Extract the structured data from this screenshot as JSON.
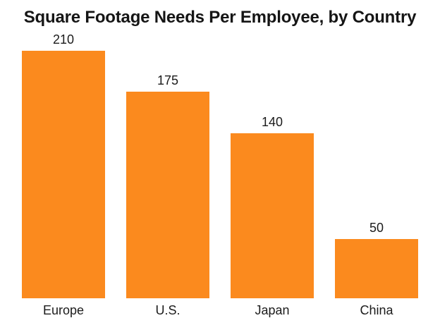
{
  "page": {
    "background": "#FFFFFF"
  },
  "chart_data": {
    "type": "bar",
    "title": "Square Footage Needs Per Employee, by Country",
    "categories": [
      "Europe",
      "U.S.",
      "Japan",
      "China"
    ],
    "values": [
      210,
      175,
      140,
      50
    ],
    "value_labels_shown": true,
    "value_label_position": "above bars",
    "xlabel": "",
    "ylabel": "",
    "ylim": [
      0,
      225
    ],
    "grid": false,
    "axes_shown": false,
    "legend": "none",
    "bar_color": "#FB8A1E",
    "text_color": "#1B1B1B",
    "title_color": "#151515"
  }
}
